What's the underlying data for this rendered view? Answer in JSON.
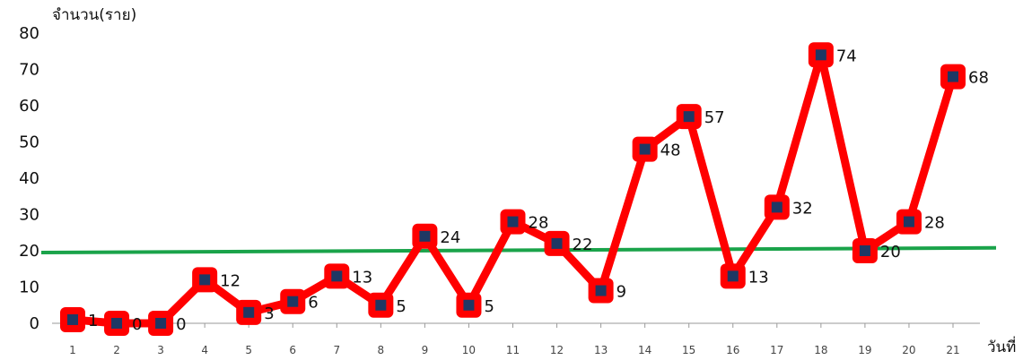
{
  "chart_data": {
    "type": "line",
    "ylabel": "จำนวน(ราย)",
    "xlabel": "วันที่",
    "ylim": [
      0,
      80
    ],
    "yticks": [
      0,
      10,
      20,
      30,
      40,
      50,
      60,
      70,
      80
    ],
    "categories": [
      "1",
      "2",
      "3",
      "4",
      "5",
      "6",
      "7",
      "8",
      "9",
      "10",
      "11",
      "12",
      "13",
      "14",
      "15",
      "16",
      "17",
      "18",
      "19",
      "20",
      "21"
    ],
    "series": [
      {
        "values": [
          1,
          0,
          0,
          12,
          3,
          6,
          13,
          5,
          24,
          5,
          28,
          22,
          9,
          48,
          57,
          13,
          32,
          74,
          20,
          28,
          68
        ],
        "color": "#ff0000",
        "marker_color": "#1f3864"
      }
    ],
    "reference_line": {
      "start": 19.5,
      "end": 20.8,
      "color": "#1aa34a"
    },
    "grid": false,
    "data_labels": true
  }
}
